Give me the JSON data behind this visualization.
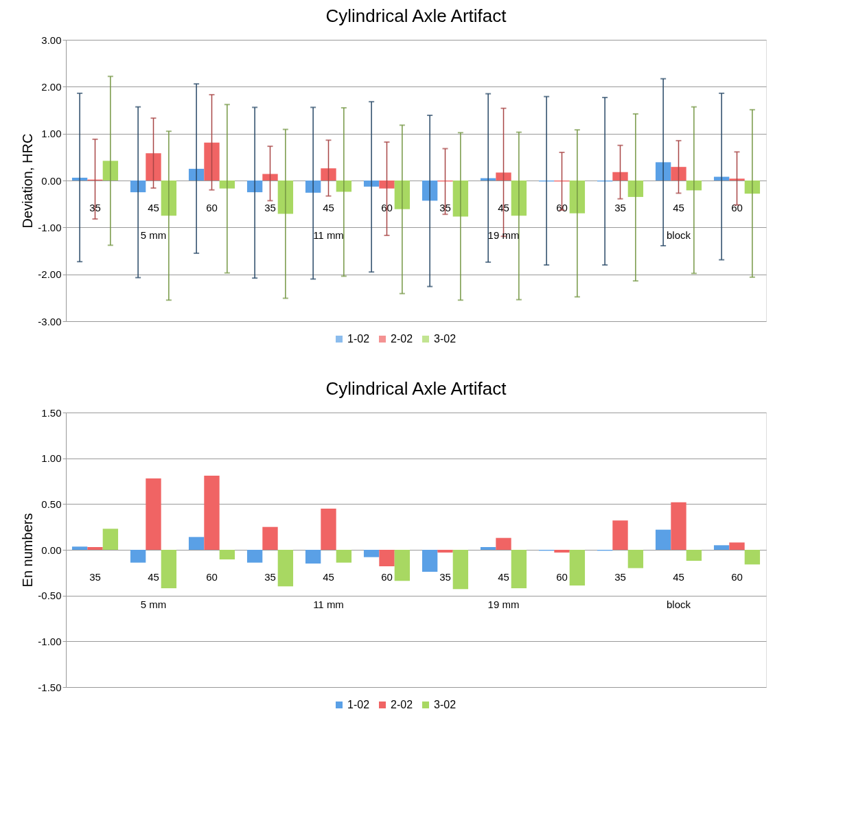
{
  "chart_data": [
    {
      "type": "bar",
      "title": "Cylindrical Axle Artifact",
      "ylabel": "Deviation, HRC",
      "categories": [
        "35",
        "45",
        "60",
        "35",
        "45",
        "60",
        "35",
        "45",
        "60",
        "35",
        "45",
        "60"
      ],
      "annotations": [
        "5 mm",
        "11 mm",
        "19 mm",
        "block"
      ],
      "series": [
        {
          "name": "1-02",
          "color": "#5aa0e6",
          "values": [
            0.06,
            -0.25,
            0.25,
            -0.25,
            -0.26,
            -0.13,
            -0.43,
            0.05,
            -0.02,
            -0.02,
            0.39,
            0.08
          ],
          "errors": [
            [
              -1.73,
              1.86
            ],
            [
              -2.07,
              1.57
            ],
            [
              -1.55,
              2.06
            ],
            [
              -2.08,
              1.56
            ],
            [
              -2.1,
              1.56
            ],
            [
              -1.95,
              1.68
            ],
            [
              -2.26,
              1.39
            ],
            [
              -1.74,
              1.85
            ],
            [
              -1.8,
              1.79
            ],
            [
              -1.8,
              1.77
            ],
            [
              -1.39,
              2.17
            ],
            [
              -1.69,
              1.86
            ]
          ]
        },
        {
          "name": "2-02",
          "color": "#f06464",
          "values": [
            0.02,
            0.58,
            0.81,
            0.14,
            0.26,
            -0.17,
            -0.02,
            0.17,
            -0.02,
            0.18,
            0.29,
            0.04
          ],
          "errors": [
            [
              -0.82,
              0.88
            ],
            [
              -0.16,
              1.33
            ],
            [
              -0.2,
              1.83
            ],
            [
              -0.43,
              0.73
            ],
            [
              -0.33,
              0.86
            ],
            [
              -1.17,
              0.82
            ],
            [
              -0.72,
              0.68
            ],
            [
              -1.19,
              1.54
            ],
            [
              -0.63,
              0.6
            ],
            [
              -0.39,
              0.75
            ],
            [
              -0.27,
              0.85
            ],
            [
              -0.52,
              0.61
            ]
          ]
        },
        {
          "name": "3-02",
          "color": "#a8d862",
          "values": [
            0.42,
            -0.75,
            -0.17,
            -0.71,
            -0.24,
            -0.61,
            -0.77,
            -0.75,
            -0.7,
            -0.35,
            -0.21,
            -0.28
          ],
          "errors": [
            [
              -1.38,
              2.22
            ],
            [
              -2.55,
              1.05
            ],
            [
              -1.97,
              1.62
            ],
            [
              -2.51,
              1.09
            ],
            [
              -2.04,
              1.55
            ],
            [
              -2.41,
              1.18
            ],
            [
              -2.55,
              1.02
            ],
            [
              -2.54,
              1.03
            ],
            [
              -2.48,
              1.08
            ],
            [
              -2.14,
              1.42
            ],
            [
              -1.98,
              1.57
            ],
            [
              -2.06,
              1.51
            ]
          ]
        }
      ],
      "ylim": [
        -3,
        3
      ],
      "yticks": [
        {
          "value": -3,
          "label": "-3.00"
        },
        {
          "value": -2,
          "label": "-2.00"
        },
        {
          "value": -1,
          "label": "-1.00"
        },
        {
          "value": 0,
          "label": "0.00"
        },
        {
          "value": 1,
          "label": "1.00"
        },
        {
          "value": 2,
          "label": "2.00"
        },
        {
          "value": 3,
          "label": "3.00"
        }
      ],
      "grid": "y",
      "legend": "bottom"
    },
    {
      "type": "bar",
      "title": "Cylindrical Axle Artifact",
      "ylabel": "En numbers",
      "categories": [
        "35",
        "45",
        "60",
        "35",
        "45",
        "60",
        "35",
        "45",
        "60",
        "35",
        "45",
        "60"
      ],
      "annotations": [
        "5 mm",
        "11 mm",
        "19 mm",
        "block"
      ],
      "series": [
        {
          "name": "1-02",
          "color": "#5aa0e6",
          "values": [
            0.035,
            -0.14,
            0.14,
            -0.14,
            -0.15,
            -0.08,
            -0.24,
            0.03,
            -0.01,
            -0.01,
            0.22,
            0.05
          ]
        },
        {
          "name": "2-02",
          "color": "#f06464",
          "values": [
            0.03,
            0.78,
            0.81,
            0.25,
            0.45,
            -0.18,
            -0.03,
            0.13,
            -0.03,
            0.32,
            0.52,
            0.08
          ]
        },
        {
          "name": "3-02",
          "color": "#a8d862",
          "values": [
            0.23,
            -0.42,
            -0.105,
            -0.4,
            -0.14,
            -0.34,
            -0.43,
            -0.42,
            -0.39,
            -0.2,
            -0.12,
            -0.16
          ]
        }
      ],
      "ylim": [
        -1.5,
        1.5
      ],
      "yticks": [
        {
          "value": -1.5,
          "label": "-1.50"
        },
        {
          "value": -1,
          "label": "-1.00"
        },
        {
          "value": -0.5,
          "label": "-0.50"
        },
        {
          "value": 0,
          "label": "0.00"
        },
        {
          "value": 0.5,
          "label": "0.50"
        },
        {
          "value": 1,
          "label": "1.00"
        },
        {
          "value": 1.5,
          "label": "1.50"
        }
      ],
      "grid": "y",
      "legend": "bottom"
    }
  ]
}
